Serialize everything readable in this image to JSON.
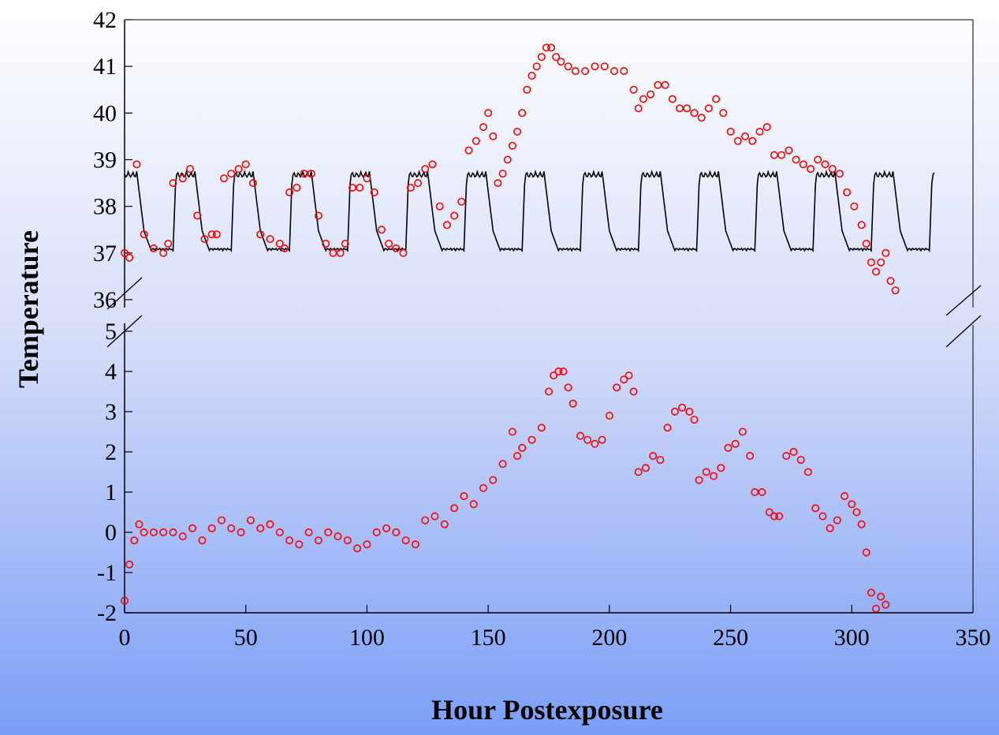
{
  "chart_data": {
    "type": "scatter",
    "xlabel": "Hour Postexposure",
    "ylabel": "Temperature",
    "xlim": [
      0,
      350
    ],
    "x_ticks": [
      "0",
      "50",
      "100",
      "150",
      "200",
      "250",
      "300",
      "350"
    ],
    "upper_panel": {
      "ylim": [
        36,
        42
      ],
      "y_ticks": [
        "36",
        "37",
        "38",
        "39",
        "40",
        "41",
        "42"
      ]
    },
    "lower_panel": {
      "ylim": [
        -2,
        5
      ],
      "y_ticks": [
        "-2",
        "-1",
        "0",
        "1",
        "2",
        "3",
        "4",
        "5"
      ]
    },
    "axis_break": true,
    "grid": false,
    "legend": "none",
    "colors": {
      "observed": "#ff0000",
      "baseline": "#000000"
    },
    "series": [
      {
        "panel": "upper",
        "style": "line",
        "color": "#000000",
        "pattern": "daily cycle",
        "period_hours": 24,
        "peak_offset_hours": 20,
        "x": [
          0,
          334
        ],
        "y_range": [
          37.05,
          38.75
        ]
      },
      {
        "panel": "upper",
        "style": "markers",
        "color": "#ff0000",
        "x": [
          0,
          2,
          5,
          8,
          12,
          16,
          18,
          20,
          24,
          27,
          30,
          33,
          36,
          38,
          41,
          44,
          47,
          50,
          53,
          56,
          60,
          64,
          66,
          68,
          71,
          74,
          77,
          80,
          83,
          86,
          89,
          91,
          94,
          97,
          100,
          103,
          106,
          109,
          112,
          115,
          118,
          121,
          124,
          127,
          130,
          133,
          136,
          139,
          142,
          145,
          148,
          150,
          152,
          154,
          156,
          158,
          160,
          162,
          164,
          166,
          168,
          170,
          172,
          174,
          176,
          178,
          180,
          183,
          186,
          190,
          194,
          198,
          202,
          206,
          210,
          212,
          214,
          217,
          220,
          223,
          226,
          229,
          232,
          235,
          238,
          241,
          244,
          247,
          250,
          253,
          256,
          259,
          262,
          265,
          268,
          271,
          274,
          277,
          280,
          283,
          286,
          289,
          292,
          295,
          298,
          301,
          304,
          306,
          308,
          310,
          312,
          314,
          316,
          318
        ],
        "y": [
          37.0,
          36.9,
          38.9,
          37.4,
          37.1,
          37.0,
          37.2,
          38.5,
          38.6,
          38.8,
          37.8,
          37.3,
          37.4,
          37.4,
          38.6,
          38.7,
          38.8,
          38.9,
          38.5,
          37.4,
          37.3,
          37.2,
          37.1,
          38.3,
          38.4,
          38.7,
          38.7,
          37.8,
          37.2,
          37.0,
          37.0,
          37.2,
          38.4,
          38.4,
          38.6,
          38.3,
          37.5,
          37.2,
          37.1,
          37.0,
          38.4,
          38.5,
          38.8,
          38.9,
          38.0,
          37.6,
          37.8,
          38.1,
          39.2,
          39.4,
          39.7,
          40.0,
          39.5,
          38.5,
          38.7,
          39.0,
          39.3,
          39.6,
          40.0,
          40.5,
          40.8,
          41.0,
          41.2,
          41.4,
          41.4,
          41.2,
          41.1,
          41.0,
          40.9,
          40.9,
          41.0,
          41.0,
          40.9,
          40.9,
          40.5,
          40.1,
          40.3,
          40.4,
          40.6,
          40.6,
          40.3,
          40.1,
          40.1,
          40.0,
          39.9,
          40.1,
          40.3,
          40.0,
          39.6,
          39.4,
          39.5,
          39.4,
          39.6,
          39.7,
          39.1,
          39.1,
          39.2,
          39.0,
          38.9,
          38.8,
          39.0,
          38.9,
          38.8,
          38.7,
          38.3,
          38.0,
          37.6,
          37.2,
          36.8,
          36.6,
          36.8,
          37.0,
          36.4,
          36.2
        ]
      },
      {
        "panel": "lower",
        "style": "markers",
        "color": "#ff0000",
        "x": [
          0,
          2,
          4,
          6,
          8,
          12,
          16,
          20,
          24,
          28,
          32,
          36,
          40,
          44,
          48,
          52,
          56,
          60,
          64,
          68,
          72,
          76,
          80,
          84,
          88,
          92,
          96,
          100,
          104,
          108,
          112,
          116,
          120,
          124,
          128,
          132,
          136,
          140,
          144,
          148,
          152,
          156,
          160,
          162,
          164,
          168,
          172,
          175,
          177,
          179,
          181,
          183,
          185,
          188,
          191,
          194,
          197,
          200,
          203,
          206,
          208,
          210,
          212,
          215,
          218,
          221,
          224,
          227,
          230,
          233,
          235,
          237,
          240,
          243,
          246,
          249,
          252,
          255,
          258,
          260,
          263,
          266,
          268,
          270,
          273,
          276,
          279,
          282,
          285,
          288,
          291,
          294,
          297,
          300,
          302,
          304,
          306,
          308,
          310,
          312,
          314
        ],
        "y": [
          -1.7,
          -0.8,
          -0.2,
          0.2,
          0.0,
          0.0,
          0.0,
          0.0,
          -0.1,
          0.1,
          -0.2,
          0.1,
          0.3,
          0.1,
          0.0,
          0.3,
          0.1,
          0.2,
          0.0,
          -0.2,
          -0.3,
          0.0,
          -0.2,
          0.0,
          -0.1,
          -0.2,
          -0.4,
          -0.3,
          0.0,
          0.1,
          0.0,
          -0.2,
          -0.3,
          0.3,
          0.4,
          0.2,
          0.6,
          0.9,
          0.7,
          1.1,
          1.3,
          1.7,
          2.5,
          1.9,
          2.1,
          2.3,
          2.6,
          3.5,
          3.9,
          4.0,
          4.0,
          3.6,
          3.2,
          2.4,
          2.3,
          2.2,
          2.3,
          2.9,
          3.6,
          3.8,
          3.9,
          3.5,
          1.5,
          1.6,
          1.9,
          1.8,
          2.6,
          3.0,
          3.1,
          3.0,
          2.8,
          1.3,
          1.5,
          1.4,
          1.6,
          2.1,
          2.2,
          2.5,
          1.9,
          1.0,
          1.0,
          0.5,
          0.4,
          0.4,
          1.9,
          2.0,
          1.8,
          1.5,
          0.6,
          0.4,
          0.1,
          0.3,
          0.9,
          0.7,
          0.5,
          0.2,
          -0.5,
          -1.5,
          -1.9,
          -1.6,
          -1.8
        ]
      }
    ]
  }
}
